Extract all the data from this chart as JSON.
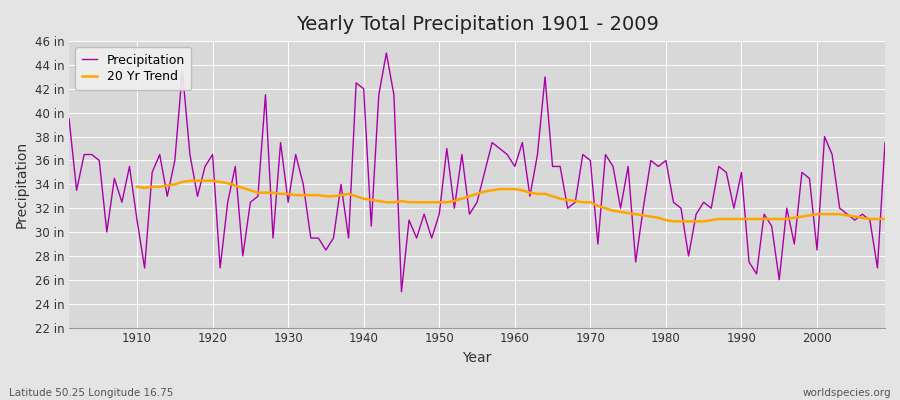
{
  "title": "Yearly Total Precipitation 1901 - 2009",
  "xlabel": "Year",
  "ylabel": "Precipitation",
  "subtitle_left": "Latitude 50.25 Longitude 16.75",
  "subtitle_right": "worldspecies.org",
  "ylim": [
    22,
    46
  ],
  "yticks": [
    22,
    24,
    26,
    28,
    30,
    32,
    34,
    36,
    38,
    40,
    42,
    44,
    46
  ],
  "ytick_labels": [
    "22 in",
    "24 in",
    "26 in",
    "28 in",
    "30 in",
    "32 in",
    "34 in",
    "36 in",
    "38 in",
    "40 in",
    "42 in",
    "44 in",
    "46 in"
  ],
  "years": [
    1901,
    1902,
    1903,
    1904,
    1905,
    1906,
    1907,
    1908,
    1909,
    1910,
    1911,
    1912,
    1913,
    1914,
    1915,
    1916,
    1917,
    1918,
    1919,
    1920,
    1921,
    1922,
    1923,
    1924,
    1925,
    1926,
    1927,
    1928,
    1929,
    1930,
    1931,
    1932,
    1933,
    1934,
    1935,
    1936,
    1937,
    1938,
    1939,
    1940,
    1941,
    1942,
    1943,
    1944,
    1945,
    1946,
    1947,
    1948,
    1949,
    1950,
    1951,
    1952,
    1953,
    1954,
    1955,
    1956,
    1957,
    1958,
    1959,
    1960,
    1961,
    1962,
    1963,
    1964,
    1965,
    1966,
    1967,
    1968,
    1969,
    1970,
    1971,
    1972,
    1973,
    1974,
    1975,
    1976,
    1977,
    1978,
    1979,
    1980,
    1981,
    1982,
    1983,
    1984,
    1985,
    1986,
    1987,
    1988,
    1989,
    1990,
    1991,
    1992,
    1993,
    1994,
    1995,
    1996,
    1997,
    1998,
    1999,
    2000,
    2001,
    2002,
    2003,
    2004,
    2005,
    2006,
    2007,
    2008,
    2009
  ],
  "precipitation": [
    39.5,
    33.5,
    36.5,
    36.5,
    36.0,
    30.0,
    34.5,
    32.5,
    35.5,
    31.0,
    27.0,
    35.0,
    36.5,
    33.0,
    36.0,
    43.5,
    36.5,
    33.0,
    35.5,
    36.5,
    27.0,
    32.5,
    35.5,
    28.0,
    32.5,
    33.0,
    41.5,
    29.5,
    37.5,
    32.5,
    36.5,
    34.0,
    29.5,
    29.5,
    28.5,
    29.5,
    34.0,
    29.5,
    42.5,
    42.0,
    30.5,
    41.5,
    45.0,
    41.5,
    25.0,
    31.0,
    29.5,
    31.5,
    29.5,
    31.5,
    37.0,
    32.0,
    36.5,
    31.5,
    32.5,
    35.0,
    37.5,
    37.0,
    36.5,
    35.5,
    37.5,
    33.0,
    36.5,
    43.0,
    35.5,
    35.5,
    32.0,
    32.5,
    36.5,
    36.0,
    29.0,
    36.5,
    35.5,
    32.0,
    35.5,
    27.5,
    32.0,
    36.0,
    35.5,
    36.0,
    32.5,
    32.0,
    28.0,
    31.5,
    32.5,
    32.0,
    35.5,
    35.0,
    32.0,
    35.0,
    27.5,
    26.5,
    31.5,
    30.5,
    26.0,
    32.0,
    29.0,
    35.0,
    34.5,
    28.5,
    38.0,
    36.5,
    32.0,
    31.5,
    31.0,
    31.5,
    31.0,
    27.0,
    37.5
  ],
  "trend_years": [
    1910,
    1911,
    1912,
    1913,
    1914,
    1915,
    1916,
    1917,
    1918,
    1919,
    1920,
    1921,
    1922,
    1923,
    1924,
    1925,
    1926,
    1927,
    1928,
    1929,
    1930,
    1931,
    1932,
    1933,
    1934,
    1935,
    1936,
    1937,
    1938,
    1939,
    1940,
    1941,
    1942,
    1943,
    1944,
    1945,
    1946,
    1947,
    1948,
    1949,
    1950,
    1951,
    1952,
    1953,
    1954,
    1955,
    1956,
    1957,
    1958,
    1959,
    1960,
    1961,
    1962,
    1963,
    1964,
    1965,
    1966,
    1967,
    1968,
    1969,
    1970,
    1971,
    1972,
    1973,
    1974,
    1975,
    1976,
    1977,
    1978,
    1979,
    1980,
    1981,
    1982,
    1983,
    1984,
    1985,
    1986,
    1987,
    1988,
    1989,
    1990,
    1991,
    1992,
    1993,
    1994,
    1995,
    1996,
    1997,
    1998,
    1999,
    2000,
    2001,
    2002,
    2003,
    2004,
    2005,
    2006,
    2007,
    2008,
    2009
  ],
  "trend": [
    33.8,
    33.7,
    33.8,
    33.8,
    33.9,
    34.0,
    34.2,
    34.3,
    34.3,
    34.3,
    34.3,
    34.2,
    34.1,
    33.9,
    33.7,
    33.5,
    33.3,
    33.3,
    33.3,
    33.2,
    33.2,
    33.1,
    33.1,
    33.1,
    33.1,
    33.0,
    33.0,
    33.1,
    33.2,
    33.0,
    32.8,
    32.7,
    32.6,
    32.5,
    32.5,
    32.6,
    32.5,
    32.5,
    32.5,
    32.5,
    32.5,
    32.5,
    32.6,
    32.8,
    33.0,
    33.2,
    33.4,
    33.5,
    33.6,
    33.6,
    33.6,
    33.5,
    33.3,
    33.2,
    33.2,
    33.0,
    32.8,
    32.7,
    32.6,
    32.5,
    32.5,
    32.2,
    32.0,
    31.8,
    31.7,
    31.6,
    31.5,
    31.4,
    31.3,
    31.2,
    31.0,
    30.9,
    30.9,
    30.9,
    30.9,
    30.9,
    31.0,
    31.1,
    31.1,
    31.1,
    31.1,
    31.1,
    31.1,
    31.1,
    31.1,
    31.1,
    31.1,
    31.2,
    31.3,
    31.4,
    31.5,
    31.5,
    31.5,
    31.5,
    31.4,
    31.3,
    31.2,
    31.1,
    31.1,
    31.1
  ],
  "precip_color": "#AA00AA",
  "trend_color": "#FFA500",
  "bg_color": "#E4E4E4",
  "plot_bg_color": "#D8D8D8",
  "grid_color": "#FFFFFF",
  "title_fontsize": 14,
  "axis_fontsize": 10,
  "tick_fontsize": 8.5,
  "legend_fontsize": 9
}
